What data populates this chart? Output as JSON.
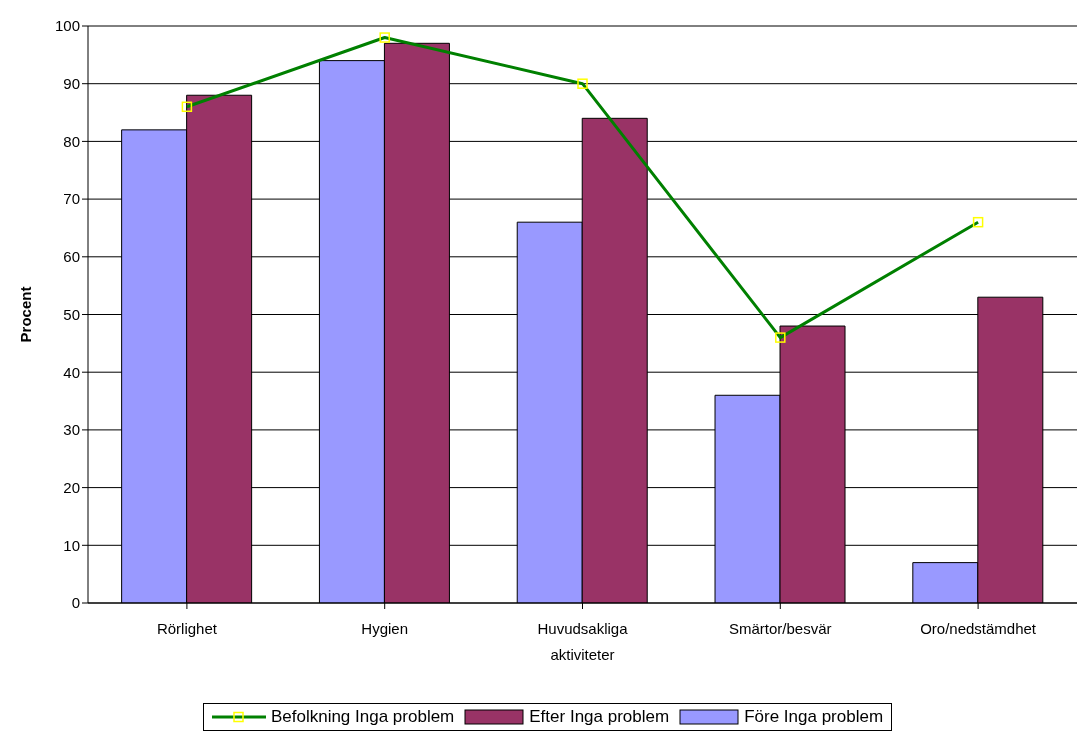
{
  "chart_data": {
    "type": "bar",
    "ylabel": "Procent",
    "categories": [
      "Rörlighet",
      "Hygien",
      "Huvudsakliga aktiviteter",
      "Smärtor/besvär",
      "Oro/nedstämdhet"
    ],
    "series": [
      {
        "name": "Före Inga problem",
        "color": "#9999ff",
        "values": [
          82,
          94,
          66,
          36,
          7
        ]
      },
      {
        "name": "Efter Inga problem",
        "color": "#993366",
        "values": [
          88,
          97,
          84,
          48,
          53
        ]
      },
      {
        "name": "Befolkning Inga problem",
        "type": "line",
        "color": "#008000",
        "marker": "square",
        "values": [
          86,
          98,
          90,
          46,
          66
        ]
      }
    ],
    "ylim": [
      0,
      100
    ],
    "yticks": [
      0,
      10,
      20,
      30,
      40,
      50,
      60,
      70,
      80,
      90,
      100
    ],
    "grid": "y",
    "legend": "bottom"
  }
}
